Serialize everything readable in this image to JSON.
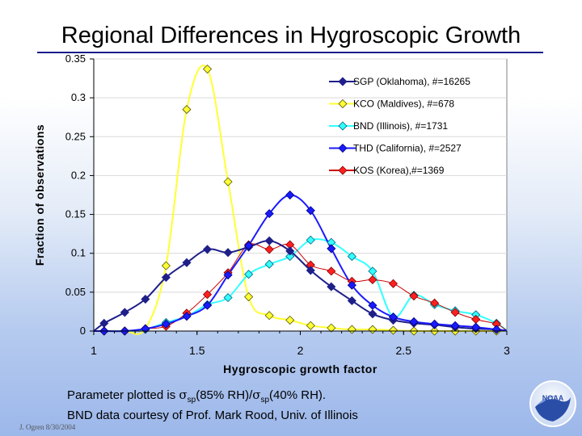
{
  "page": {
    "title": "Regional Differences in Hygroscopic Growth",
    "footnote_line1_prefix": "Parameter plotted is ",
    "sigma": "σ",
    "sub_sp": "sp",
    "rh85": "(85% RH)/",
    "rh40": "(40% RH).",
    "footnote_line2": "BND data courtesy of Prof. Mark Rood, Univ. of Illinois",
    "credit": "J. Ogren  8/30/2004",
    "logo_text": "NOAA"
  },
  "colors": {
    "SGP": "#1f1f8a",
    "KCO_line": "#ffff33",
    "KCO_marker": "#ffff33",
    "BND": "#33ffff",
    "THD": "#1a1aff",
    "KOS": "#cc0000",
    "KOS_marker": "#ff2020",
    "plot_bg": "#ffffff",
    "title_underline": "#1a1a8c"
  },
  "chart_data": {
    "type": "line",
    "xlabel": "Hygroscopic growth factor",
    "ylabel": "Fraction of observations",
    "xlim": [
      1,
      3
    ],
    "ylim": [
      0,
      0.35
    ],
    "xticks": [
      "1",
      "1.5",
      "2",
      "2.5",
      "3"
    ],
    "yticks": [
      "0",
      "0.05",
      "0.1",
      "0.15",
      "0.2",
      "0.25",
      "0.3",
      "0.35"
    ],
    "legend_position": "top-right",
    "series": [
      {
        "name": "SGP (Oklahoma), #=16265",
        "key": "SGP",
        "x": [
          1.05,
          1.15,
          1.25,
          1.35,
          1.45,
          1.55,
          1.65,
          1.75,
          1.85,
          1.95,
          2.05,
          2.15,
          2.25,
          2.35,
          2.45,
          2.55,
          2.65,
          2.75,
          2.85,
          2.95
        ],
        "y": [
          0.01,
          0.024,
          0.041,
          0.069,
          0.088,
          0.105,
          0.101,
          0.108,
          0.116,
          0.103,
          0.078,
          0.057,
          0.039,
          0.022,
          0.014,
          0.01,
          0.008,
          0.005,
          0.003,
          0.002
        ]
      },
      {
        "name": "KCO (Maldives), #=678",
        "key": "KCO",
        "x": [
          1.05,
          1.15,
          1.25,
          1.35,
          1.45,
          1.55,
          1.65,
          1.75,
          1.85,
          1.95,
          2.05,
          2.15,
          2.25,
          2.35,
          2.45,
          2.55,
          2.65,
          2.75,
          2.85,
          2.95
        ],
        "y": [
          0.0,
          0.0,
          0.003,
          0.084,
          0.285,
          0.337,
          0.192,
          0.044,
          0.02,
          0.014,
          0.007,
          0.004,
          0.002,
          0.002,
          0.001,
          0.0,
          0.0,
          0.0,
          0.0,
          0.0
        ]
      },
      {
        "name": "BND (Illinois), #=1731",
        "key": "BND",
        "x": [
          1.05,
          1.15,
          1.25,
          1.35,
          1.45,
          1.55,
          1.65,
          1.75,
          1.85,
          1.95,
          2.05,
          2.15,
          2.25,
          2.35,
          2.45,
          2.55,
          2.65,
          2.75,
          2.85,
          2.95
        ],
        "y": [
          0.0,
          0.0,
          0.002,
          0.011,
          0.019,
          0.034,
          0.043,
          0.073,
          0.086,
          0.096,
          0.117,
          0.114,
          0.096,
          0.077,
          0.018,
          0.046,
          0.034,
          0.026,
          0.021,
          0.01
        ]
      },
      {
        "name": "THD (California), #=2527",
        "key": "THD",
        "x": [
          1.05,
          1.15,
          1.25,
          1.35,
          1.45,
          1.55,
          1.65,
          1.75,
          1.85,
          1.95,
          2.05,
          2.15,
          2.25,
          2.35,
          2.45,
          2.55,
          2.65,
          2.75,
          2.85,
          2.95
        ],
        "y": [
          0.0,
          0.0,
          0.003,
          0.009,
          0.019,
          0.033,
          0.072,
          0.11,
          0.151,
          0.175,
          0.155,
          0.106,
          0.059,
          0.033,
          0.018,
          0.012,
          0.009,
          0.007,
          0.005,
          0.002
        ]
      },
      {
        "name": "KOS (Korea),#=1369",
        "key": "KOS",
        "x": [
          1.05,
          1.15,
          1.25,
          1.35,
          1.45,
          1.55,
          1.65,
          1.75,
          1.85,
          1.95,
          2.05,
          2.15,
          2.25,
          2.35,
          2.45,
          2.55,
          2.65,
          2.75,
          2.85,
          2.95
        ],
        "y": [
          0.0,
          0.0,
          0.003,
          0.006,
          0.023,
          0.047,
          0.075,
          0.111,
          0.105,
          0.111,
          0.085,
          0.077,
          0.064,
          0.066,
          0.061,
          0.045,
          0.036,
          0.024,
          0.015,
          0.009
        ]
      }
    ]
  }
}
